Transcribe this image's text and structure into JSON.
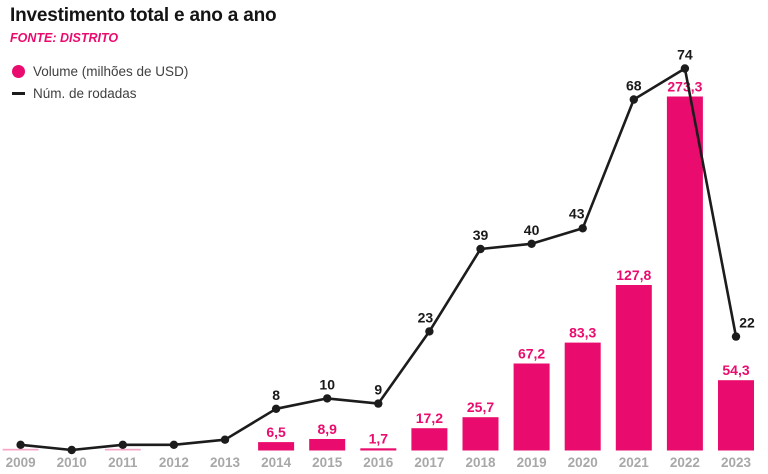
{
  "header": {
    "title": "Investimento total e ano a ano",
    "source": "FONTE: DISTRITO"
  },
  "colors": {
    "accent_pink": "#E90C6E",
    "muted_pink": "#F5A6C6",
    "line_black": "#1C1C1C",
    "tick_gray": "#A8A8A8"
  },
  "legend": [
    {
      "label": "Volume (milhões de USD)",
      "marker": "circle-icon",
      "color": "#E90C6E"
    },
    {
      "label": "Núm. de rodadas",
      "marker": "dash-icon",
      "color": "#1C1C1C"
    }
  ],
  "chart_data": {
    "type": "bar+line combo",
    "categories": [
      "2009",
      "2010",
      "2011",
      "2012",
      "2013",
      "2014",
      "2015",
      "2016",
      "2017",
      "2018",
      "2019",
      "2020",
      "2021",
      "2022",
      "2023"
    ],
    "series": [
      {
        "name": "Volume (milhões de USD)",
        "type": "bar",
        "color": "#E90C6E",
        "muted_color": "#F5A6C6",
        "values": [
          1,
          0,
          1,
          0,
          0,
          6.5,
          8.9,
          1.7,
          17.2,
          25.7,
          67.2,
          83.3,
          127.8,
          273.3,
          54.3
        ],
        "labels": [
          "",
          "",
          "",
          "",
          "",
          "6,5",
          "8,9",
          "1,7",
          "17,2",
          "25,7",
          "67,2",
          "83,3",
          "127,8",
          "273,3",
          "54,3"
        ],
        "muted": [
          true,
          false,
          true,
          false,
          false,
          false,
          false,
          false,
          false,
          false,
          false,
          false,
          false,
          false,
          false
        ]
      },
      {
        "name": "Núm. de rodadas",
        "type": "line",
        "color": "#1C1C1C",
        "values": [
          1,
          0,
          1,
          1,
          2,
          8,
          10,
          9,
          23,
          39,
          40,
          43,
          68,
          74,
          22
        ],
        "labels": [
          "",
          "",
          "",
          "",
          "",
          "8",
          "10",
          "9",
          "23",
          "39",
          "40",
          "43",
          "68",
          "74",
          "22"
        ]
      }
    ],
    "xlabel": "",
    "ylabel": "",
    "ylim_volume": [
      0,
      280
    ],
    "ylim_rounds": [
      0,
      78
    ],
    "grid": false,
    "axes_visible": false,
    "legend_position": "top-left",
    "label_offsets_rounds": {
      "2017": [
        -4,
        0
      ],
      "2020": [
        -6,
        -1
      ],
      "2023": [
        11,
        0
      ]
    }
  }
}
